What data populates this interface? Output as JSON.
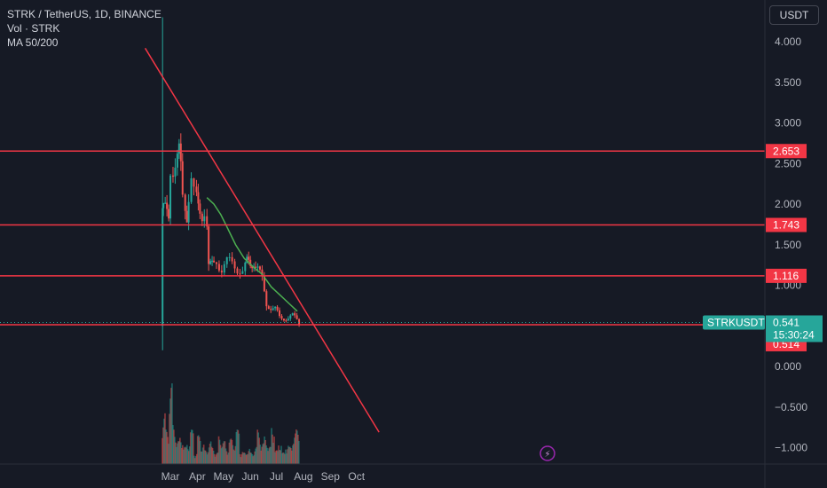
{
  "header": {
    "title": "STRK / TetherUS, 1D, BINANCE",
    "indicator_volume": "Vol · STRK",
    "indicator_ma": "MA 50/200",
    "currency": "USDT"
  },
  "colors": {
    "background": "#161a25",
    "up": "#26a69a",
    "down": "#ef5350",
    "trendline": "#f23645",
    "ma": "#4caf50",
    "hline": "#f23645"
  },
  "chart_data": {
    "type": "candlestick",
    "symbol": "STRKUSDT",
    "x_ticks": [
      "Mar",
      "Apr",
      "May",
      "Jun",
      "Jul",
      "Aug",
      "Sep",
      "Oct"
    ],
    "y_ticks": [
      "4.000",
      "3.500",
      "3.000",
      "2.500",
      "2.000",
      "1.500",
      "1.000",
      "0.000",
      "−0.500",
      "−1.000"
    ],
    "ylim": [
      -1.1,
      4.3
    ],
    "horizontal_levels": [
      {
        "value": 2.653,
        "label": "2.653"
      },
      {
        "value": 1.743,
        "label": "1.743"
      },
      {
        "value": 1.116,
        "label": "1.116"
      },
      {
        "value": 0.514,
        "label": "0.514"
      }
    ],
    "last_price": {
      "symbol_label": "STRKUSDT",
      "price": "0.541",
      "countdown": "15:30:24"
    },
    "trendline": {
      "from": {
        "date": "2024-02-01",
        "value": 3.92
      },
      "to": {
        "date": "2024-10-27",
        "value": -0.81
      }
    },
    "ma_line": [
      {
        "date": "2024-04-12",
        "value": 2.08
      },
      {
        "date": "2024-04-20",
        "value": 2.0
      },
      {
        "date": "2024-04-28",
        "value": 1.87
      },
      {
        "date": "2024-05-05",
        "value": 1.72
      },
      {
        "date": "2024-05-15",
        "value": 1.5
      },
      {
        "date": "2024-05-25",
        "value": 1.33
      },
      {
        "date": "2024-06-04",
        "value": 1.23
      },
      {
        "date": "2024-06-15",
        "value": 1.13
      },
      {
        "date": "2024-06-25",
        "value": 0.98
      },
      {
        "date": "2024-07-05",
        "value": 0.88
      },
      {
        "date": "2024-07-15",
        "value": 0.78
      },
      {
        "date": "2024-07-25",
        "value": 0.68
      }
    ],
    "price_path": [
      {
        "date": "2024-02-20",
        "value": 1.95
      },
      {
        "date": "2024-02-24",
        "value": 1.9
      },
      {
        "date": "2024-02-28",
        "value": 1.85
      },
      {
        "date": "2024-03-02",
        "value": 2.45
      },
      {
        "date": "2024-03-07",
        "value": 2.5
      },
      {
        "date": "2024-03-11",
        "value": 2.6
      },
      {
        "date": "2024-03-13",
        "value": 2.4
      },
      {
        "date": "2024-03-16",
        "value": 2.1
      },
      {
        "date": "2024-03-20",
        "value": 1.9
      },
      {
        "date": "2024-03-23",
        "value": 2.1
      },
      {
        "date": "2024-03-26",
        "value": 2.3
      },
      {
        "date": "2024-03-29",
        "value": 2.1
      },
      {
        "date": "2024-04-02",
        "value": 1.95
      },
      {
        "date": "2024-04-07",
        "value": 1.9
      },
      {
        "date": "2024-04-10",
        "value": 1.95
      },
      {
        "date": "2024-04-12",
        "value": 1.75
      },
      {
        "date": "2024-04-14",
        "value": 1.2
      },
      {
        "date": "2024-04-18",
        "value": 1.25
      },
      {
        "date": "2024-04-24",
        "value": 1.32
      },
      {
        "date": "2024-04-30",
        "value": 1.2
      },
      {
        "date": "2024-05-06",
        "value": 1.28
      },
      {
        "date": "2024-05-12",
        "value": 1.27
      },
      {
        "date": "2024-05-18",
        "value": 1.22
      },
      {
        "date": "2024-05-24",
        "value": 1.18
      },
      {
        "date": "2024-05-28",
        "value": 1.28
      },
      {
        "date": "2024-06-01",
        "value": 1.25
      },
      {
        "date": "2024-06-05",
        "value": 1.3
      },
      {
        "date": "2024-06-10",
        "value": 1.2
      },
      {
        "date": "2024-06-15",
        "value": 1.05
      },
      {
        "date": "2024-06-20",
        "value": 0.78
      },
      {
        "date": "2024-06-25",
        "value": 0.73
      },
      {
        "date": "2024-06-30",
        "value": 0.7
      },
      {
        "date": "2024-07-05",
        "value": 0.6
      },
      {
        "date": "2024-07-10",
        "value": 0.6
      },
      {
        "date": "2024-07-15",
        "value": 0.6
      },
      {
        "date": "2024-07-20",
        "value": 0.62
      },
      {
        "date": "2024-07-25",
        "value": 0.58
      },
      {
        "date": "2024-07-27",
        "value": 0.541
      }
    ],
    "first_candle": {
      "date": "2024-02-20",
      "open": 0.5,
      "high": 4.3,
      "low": 0.2,
      "close": 1.95
    },
    "volume_heights": [
      0.45,
      0.3,
      0.7,
      0.35,
      0.2,
      0.25,
      0.15,
      0.2,
      0.3,
      0.1,
      0.25,
      0.18,
      0.12,
      0.2,
      0.15,
      0.1,
      0.25,
      0.2,
      0.15,
      0.22,
      0.2,
      0.3,
      0.12,
      0.1,
      0.14,
      0.1,
      0.15,
      0.3,
      0.18,
      0.25,
      0.15,
      0.35,
      0.12,
      0.2,
      0.1,
      0.18,
      0.15,
      0.28,
      0.3
    ]
  }
}
